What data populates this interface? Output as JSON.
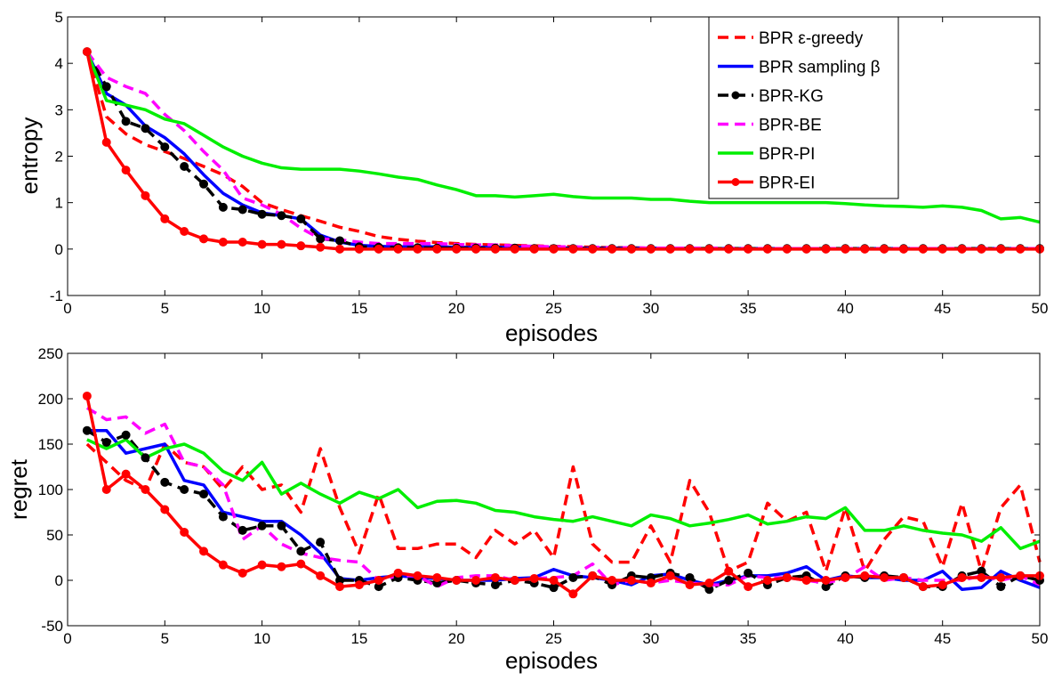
{
  "chart_data": [
    {
      "type": "line",
      "title": "",
      "xlabel": "episodes",
      "ylabel": "entropy",
      "xlim": [
        0,
        50
      ],
      "ylim": [
        -1,
        5
      ],
      "xticks": [
        "0",
        "5",
        "10",
        "15",
        "20",
        "25",
        "30",
        "35",
        "40",
        "45",
        "50"
      ],
      "yticks": [
        "-1",
        "0",
        "1",
        "2",
        "3",
        "4",
        "5"
      ],
      "x": [
        1,
        2,
        3,
        4,
        5,
        6,
        7,
        8,
        9,
        10,
        11,
        12,
        13,
        14,
        15,
        16,
        17,
        18,
        19,
        20,
        21,
        22,
        23,
        24,
        25,
        26,
        27,
        28,
        29,
        30,
        31,
        32,
        33,
        34,
        35,
        36,
        37,
        38,
        39,
        40,
        41,
        42,
        43,
        44,
        45,
        46,
        47,
        48,
        49,
        50
      ],
      "legend_position": "top-right",
      "series": [
        {
          "name": "BPR ε-greedy",
          "color": "#ff0000",
          "style": "dashed",
          "marker": "none",
          "values": [
            4.25,
            2.85,
            2.48,
            2.25,
            2.1,
            1.95,
            1.78,
            1.6,
            1.35,
            1.0,
            0.85,
            0.72,
            0.6,
            0.47,
            0.38,
            0.27,
            0.21,
            0.17,
            0.14,
            0.12,
            0.1,
            0.09,
            0.08,
            0.07,
            0.06,
            0.05,
            0.04,
            0.03,
            0.03,
            0.02,
            0.02,
            0.02,
            0.01,
            0.01,
            0.01,
            0.01,
            0.01,
            0.01,
            0.01,
            0.01,
            0.01,
            0.01,
            0.01,
            0.01,
            0.01,
            0.01,
            0.01,
            0.01,
            0.01,
            0.01
          ]
        },
        {
          "name": "BPR sampling β",
          "color": "#0000ff",
          "style": "solid",
          "marker": "none",
          "values": [
            4.25,
            3.35,
            3.1,
            2.65,
            2.4,
            2.05,
            1.6,
            1.2,
            0.95,
            0.78,
            0.72,
            0.65,
            0.3,
            0.15,
            0.08,
            0.06,
            0.05,
            0.05,
            0.05,
            0.04,
            0.04,
            0.04,
            0.04,
            0.03,
            0.03,
            0.02,
            0.02,
            0.02,
            0.02,
            0.02,
            0.02,
            0.01,
            0.01,
            0.01,
            0.01,
            0.01,
            0.01,
            0.01,
            0.01,
            0.01,
            0.01,
            0.01,
            0.01,
            0.01,
            0.01,
            0.01,
            0.01,
            0.01,
            0.01,
            0.01
          ]
        },
        {
          "name": "BPR-KG",
          "color": "#000000",
          "style": "dashed",
          "marker": "circle",
          "values": [
            4.25,
            3.5,
            2.75,
            2.6,
            2.2,
            1.78,
            1.4,
            0.9,
            0.85,
            0.75,
            0.72,
            0.65,
            0.22,
            0.18,
            0.05,
            0.04,
            0.03,
            0.03,
            0.02,
            0.02,
            0.02,
            0.02,
            0.02,
            0.01,
            0.01,
            0.01,
            0.01,
            0.01,
            0.01,
            0.01,
            0.01,
            0.01,
            0.01,
            0.01,
            0.01,
            0.01,
            0.01,
            0.01,
            0.01,
            0.01,
            0.01,
            0.01,
            0.01,
            0.01,
            0.01,
            0.01,
            0.01,
            0.01,
            0.01,
            0.01
          ]
        },
        {
          "name": "BPR-BE",
          "color": "#ff00ff",
          "style": "dashed",
          "marker": "none",
          "values": [
            4.25,
            3.7,
            3.5,
            3.35,
            2.9,
            2.55,
            2.1,
            1.7,
            1.1,
            0.95,
            0.75,
            0.45,
            0.22,
            0.2,
            0.15,
            0.12,
            0.12,
            0.12,
            0.12,
            0.1,
            0.09,
            0.09,
            0.07,
            0.06,
            0.05,
            0.05,
            0.04,
            0.03,
            0.03,
            0.02,
            0.02,
            0.02,
            0.02,
            0.02,
            0.01,
            0.01,
            0.01,
            0.01,
            0.01,
            0.01,
            0.01,
            0.01,
            0.01,
            0.01,
            0.01,
            0.01,
            0.01,
            0.01,
            0.01,
            0.01
          ]
        },
        {
          "name": "BPR-PI",
          "color": "#00ee00",
          "style": "solid",
          "marker": "none",
          "values": [
            4.25,
            3.2,
            3.1,
            3.0,
            2.8,
            2.7,
            2.45,
            2.2,
            2.0,
            1.85,
            1.75,
            1.72,
            1.72,
            1.72,
            1.68,
            1.62,
            1.55,
            1.5,
            1.38,
            1.28,
            1.15,
            1.15,
            1.12,
            1.15,
            1.18,
            1.13,
            1.1,
            1.1,
            1.1,
            1.07,
            1.07,
            1.03,
            1.0,
            1.0,
            1.0,
            1.0,
            1.0,
            1.0,
            1.0,
            0.98,
            0.95,
            0.93,
            0.92,
            0.9,
            0.93,
            0.9,
            0.83,
            0.65,
            0.68,
            0.58
          ]
        },
        {
          "name": "BPR-EI",
          "color": "#ff0000",
          "style": "solid",
          "marker": "circle",
          "values": [
            4.25,
            2.3,
            1.7,
            1.15,
            0.65,
            0.38,
            0.22,
            0.15,
            0.15,
            0.1,
            0.1,
            0.07,
            0.04,
            0.0,
            0.0,
            0.0,
            0.0,
            0.0,
            0.0,
            0.0,
            0.0,
            0.0,
            0.0,
            0.0,
            0.0,
            0.0,
            0.0,
            0.0,
            0.0,
            0.0,
            0.0,
            0.0,
            0.0,
            0.0,
            0.0,
            0.0,
            0.0,
            0.0,
            0.0,
            0.0,
            0.0,
            0.0,
            0.0,
            0.0,
            0.0,
            0.0,
            0.0,
            0.0,
            0.0,
            0.0
          ]
        }
      ]
    },
    {
      "type": "line",
      "title": "",
      "xlabel": "episodes",
      "ylabel": "regret",
      "xlim": [
        0,
        50
      ],
      "ylim": [
        -50,
        250
      ],
      "xticks": [
        "0",
        "5",
        "10",
        "15",
        "20",
        "25",
        "30",
        "35",
        "40",
        "45",
        "50"
      ],
      "yticks": [
        "-50",
        "0",
        "50",
        "100",
        "150",
        "200",
        "250"
      ],
      "x": [
        1,
        2,
        3,
        4,
        5,
        6,
        7,
        8,
        9,
        10,
        11,
        12,
        13,
        14,
        15,
        16,
        17,
        18,
        19,
        20,
        21,
        22,
        23,
        24,
        25,
        26,
        27,
        28,
        29,
        30,
        31,
        32,
        33,
        34,
        35,
        36,
        37,
        38,
        39,
        40,
        41,
        42,
        43,
        44,
        45,
        46,
        47,
        48,
        49,
        50
      ],
      "series": [
        {
          "name": "BPR ε-greedy",
          "color": "#ff0000",
          "style": "dashed",
          "marker": "none",
          "values": [
            150,
            130,
            110,
            100,
            150,
            130,
            125,
            100,
            125,
            100,
            105,
            75,
            145,
            80,
            30,
            95,
            35,
            35,
            40,
            40,
            25,
            55,
            40,
            55,
            25,
            125,
            40,
            20,
            20,
            60,
            20,
            110,
            75,
            10,
            20,
            85,
            65,
            75,
            10,
            80,
            10,
            45,
            70,
            65,
            15,
            85,
            10,
            80,
            105,
            20
          ]
        },
        {
          "name": "BPR sampling β",
          "color": "#0000ff",
          "style": "solid",
          "marker": "none",
          "values": [
            165,
            165,
            140,
            145,
            150,
            110,
            105,
            75,
            70,
            65,
            65,
            50,
            30,
            2,
            0,
            3,
            5,
            3,
            2,
            0,
            0,
            0,
            2,
            3,
            12,
            5,
            3,
            0,
            -5,
            5,
            7,
            0,
            -5,
            0,
            5,
            5,
            8,
            15,
            0,
            5,
            3,
            3,
            0,
            0,
            10,
            -10,
            -8,
            10,
            0,
            -8
          ]
        },
        {
          "name": "BPR-KG",
          "color": "#000000",
          "style": "dashed",
          "marker": "circle",
          "values": [
            165,
            152,
            160,
            135,
            108,
            100,
            95,
            70,
            55,
            60,
            60,
            32,
            42,
            0,
            0,
            -7,
            3,
            0,
            -3,
            0,
            -3,
            -5,
            0,
            -3,
            -8,
            3,
            5,
            -5,
            5,
            3,
            8,
            3,
            -10,
            0,
            8,
            -5,
            3,
            5,
            -7,
            5,
            3,
            5,
            3,
            -7,
            -7,
            5,
            10,
            -7,
            5,
            0
          ]
        },
        {
          "name": "BPR-BE",
          "color": "#ff00ff",
          "style": "dashed",
          "marker": "none",
          "values": [
            190,
            177,
            180,
            162,
            172,
            130,
            125,
            105,
            45,
            60,
            40,
            30,
            25,
            22,
            20,
            0,
            5,
            5,
            -7,
            3,
            5,
            5,
            0,
            2,
            3,
            5,
            18,
            -5,
            0,
            -3,
            0,
            -3,
            -5,
            -5,
            5,
            3,
            3,
            0,
            -3,
            2,
            15,
            0,
            3,
            0,
            0,
            0,
            5,
            0,
            5,
            -5
          ]
        },
        {
          "name": "BPR-PI",
          "color": "#00ee00",
          "style": "solid",
          "marker": "none",
          "values": [
            155,
            145,
            155,
            135,
            145,
            150,
            140,
            120,
            110,
            130,
            95,
            107,
            95,
            85,
            97,
            90,
            100,
            80,
            87,
            88,
            85,
            77,
            75,
            70,
            67,
            65,
            70,
            65,
            60,
            72,
            68,
            60,
            63,
            67,
            72,
            62,
            65,
            70,
            68,
            80,
            55,
            55,
            60,
            55,
            52,
            50,
            43,
            58,
            35,
            43
          ]
        },
        {
          "name": "BPR-EI",
          "color": "#ff0000",
          "style": "solid",
          "marker": "circle",
          "values": [
            203,
            100,
            117,
            100,
            78,
            53,
            32,
            17,
            8,
            17,
            15,
            18,
            5,
            -7,
            -5,
            0,
            8,
            5,
            3,
            0,
            0,
            3,
            0,
            2,
            0,
            -15,
            5,
            0,
            0,
            -3,
            5,
            -5,
            -3,
            10,
            -7,
            0,
            3,
            0,
            0,
            3,
            5,
            3,
            3,
            -7,
            -5,
            3,
            3,
            3,
            5,
            5
          ]
        }
      ]
    }
  ]
}
